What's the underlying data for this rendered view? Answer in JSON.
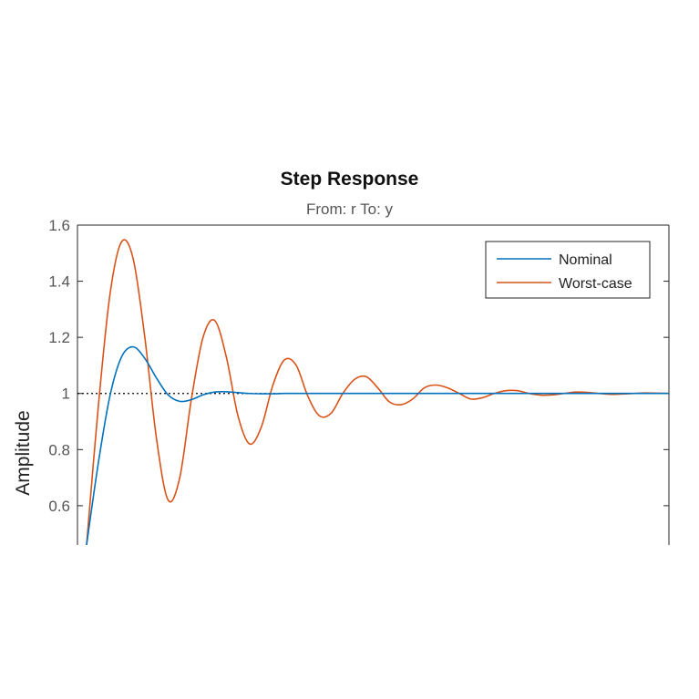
{
  "chart_data": {
    "type": "line",
    "title": "Step Response",
    "subtitle": "From: r  To: y",
    "ylabel": "Amplitude",
    "xlabel": "",
    "ylim": [
      0.46,
      1.6
    ],
    "yticks": [
      0.6,
      0.8,
      1,
      1.2,
      1.4,
      1.6
    ],
    "ytick_labels": [
      "0.6",
      "0.8",
      "1",
      "1.2",
      "1.4",
      "1.6"
    ],
    "reference_line": 1,
    "legend_position": "top-right",
    "grid": false,
    "series": [
      {
        "name": "Nominal",
        "color": "#0072BD",
        "x": [
          0.0,
          0.02,
          0.04,
          0.06,
          0.08,
          0.1,
          0.12,
          0.14,
          0.16,
          0.18,
          0.2,
          0.22,
          0.24,
          0.26,
          0.28,
          0.3,
          0.32,
          0.34,
          0.36,
          0.38,
          0.4,
          0.42,
          0.44,
          0.46,
          0.48,
          0.5,
          0.52,
          0.54,
          0.56,
          0.58,
          0.6,
          0.62,
          0.64,
          0.66,
          0.68,
          0.7,
          0.72,
          0.74,
          0.76,
          0.78,
          0.8,
          0.82,
          0.84,
          0.86,
          0.88,
          0.9,
          0.92,
          0.94,
          0.96,
          0.98,
          1.0
        ],
        "values": [
          0.46,
          0.75,
          0.99,
          1.13,
          1.166,
          1.125,
          1.055,
          0.995,
          0.972,
          0.978,
          0.995,
          1.005,
          1.006,
          1.003,
          1.0,
          0.999,
          0.999,
          1.0,
          1.0,
          1.0,
          1.0,
          1.0,
          1.0,
          1.0,
          1.0,
          1.0,
          1.0,
          1.0,
          1.0,
          1.0,
          1.0,
          1.0,
          1.0,
          1.0,
          1.0,
          1.0,
          1.0,
          1.0,
          1.0,
          1.0,
          1.0,
          1.0,
          1.0,
          1.0,
          1.0,
          1.0,
          1.0,
          1.0,
          1.0,
          1.0,
          1.0
        ]
      },
      {
        "name": "Worst-case",
        "color": "#D95319",
        "x": [
          0.0,
          0.02,
          0.04,
          0.06,
          0.08,
          0.1,
          0.12,
          0.14,
          0.16,
          0.18,
          0.2,
          0.22,
          0.24,
          0.26,
          0.28,
          0.3,
          0.32,
          0.34,
          0.36,
          0.38,
          0.4,
          0.42,
          0.44,
          0.46,
          0.48,
          0.5,
          0.52,
          0.54,
          0.56,
          0.58,
          0.6,
          0.62,
          0.64,
          0.66,
          0.68,
          0.7,
          0.72,
          0.74,
          0.76,
          0.78,
          0.8,
          0.82,
          0.84,
          0.86,
          0.88,
          0.9,
          0.92,
          0.94,
          0.96,
          0.98,
          1.0
        ],
        "values": [
          0.46,
          0.95,
          1.35,
          1.54,
          1.48,
          1.2,
          0.84,
          0.62,
          0.7,
          0.98,
          1.2,
          1.26,
          1.13,
          0.92,
          0.82,
          0.88,
          1.03,
          1.12,
          1.1,
          0.99,
          0.92,
          0.93,
          1.0,
          1.05,
          1.06,
          1.02,
          0.97,
          0.96,
          0.98,
          1.02,
          1.03,
          1.02,
          1.0,
          0.98,
          0.985,
          1.0,
          1.01,
          1.01,
          1.0,
          0.994,
          0.995,
          1.0,
          1.005,
          1.004,
          1.0,
          0.997,
          0.998,
          1.0,
          1.002,
          1.001,
          1.0
        ]
      }
    ]
  }
}
